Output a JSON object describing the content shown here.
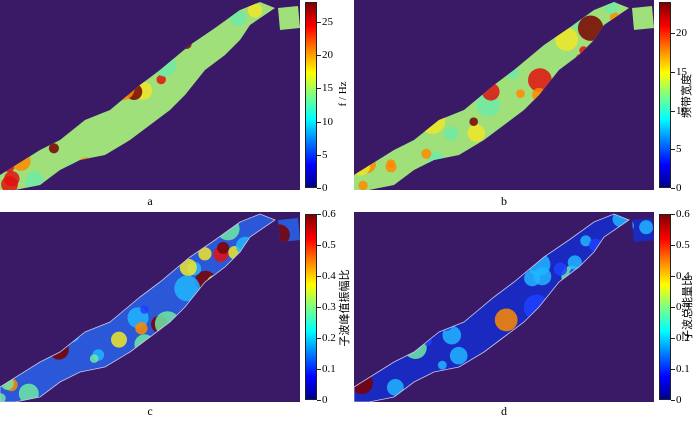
{
  "panels": [
    {
      "id": "a",
      "letter": "a",
      "cbar_label": "f / Hz",
      "cbar_ticks": [
        "0",
        "5",
        "10",
        "15",
        "20",
        "25"
      ],
      "cbar_max": 28,
      "scheme": "freq"
    },
    {
      "id": "b",
      "letter": "b",
      "cbar_label": "频带宽度",
      "cbar_ticks": [
        "0",
        "5",
        "10",
        "15",
        "20"
      ],
      "cbar_max": 24,
      "scheme": "freq"
    },
    {
      "id": "c",
      "letter": "c",
      "cbar_label": "子波峰值振幅比",
      "cbar_ticks": [
        "0",
        "0.1",
        "0.2",
        "0.3",
        "0.4",
        "0.5",
        "0.6"
      ],
      "cbar_max": 0.6,
      "scheme": "ratio"
    },
    {
      "id": "d",
      "letter": "d",
      "cbar_label": "子波总能量比",
      "cbar_ticks": [
        "0",
        "0.1",
        "0.2",
        "0.3",
        "0.4",
        "0.5",
        "0.6"
      ],
      "cbar_max": 0.6,
      "scheme": "ratio_low"
    }
  ],
  "chart_data": [
    {
      "type": "heatmap",
      "title": "",
      "panel_label": "a",
      "colorbar_label": "f / Hz",
      "colorbar_range": [
        0,
        28
      ],
      "colorbar_ticks": [
        0,
        5,
        10,
        15,
        20,
        25
      ],
      "colormap": "jet"
    },
    {
      "type": "heatmap",
      "title": "",
      "panel_label": "b",
      "colorbar_label": "频带宽度",
      "colorbar_range": [
        0,
        24
      ],
      "colorbar_ticks": [
        0,
        5,
        10,
        15,
        20
      ],
      "colormap": "jet"
    },
    {
      "type": "heatmap",
      "title": "",
      "panel_label": "c",
      "colorbar_label": "子波峰值振幅比",
      "colorbar_range": [
        0,
        0.6
      ],
      "colorbar_ticks": [
        0,
        0.1,
        0.2,
        0.3,
        0.4,
        0.5,
        0.6
      ],
      "colormap": "jet"
    },
    {
      "type": "heatmap",
      "title": "",
      "panel_label": "d",
      "colorbar_label": "子波总能量比",
      "colorbar_range": [
        0,
        0.6
      ],
      "colorbar_ticks": [
        0,
        0.1,
        0.2,
        0.3,
        0.4,
        0.5,
        0.6
      ],
      "colormap": "jet"
    }
  ]
}
